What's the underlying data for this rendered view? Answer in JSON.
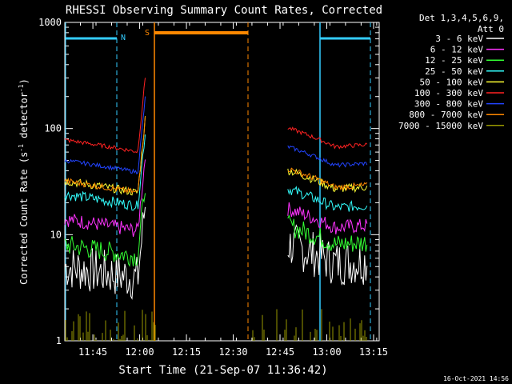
{
  "chart_data": {
    "type": "line",
    "title": "RHESSI Observing Summary Count Rates, Corrected",
    "xlabel": "Start Time (21-Sep-07 11:36:42)",
    "ylabel_main": "Corrected Count Rate (s",
    "ylabel_sup1": "-1",
    "ylabel_mid": " detector",
    "ylabel_sup2": "-1",
    "ylabel_end": ")",
    "yscale": "log",
    "ylim": [
      1,
      1000
    ],
    "xlim_minutes": [
      11.6,
      13.28
    ],
    "x_ticks": [
      "11:45",
      "12:00",
      "12:15",
      "12:30",
      "12:45",
      "13:00",
      "13:15"
    ],
    "y_ticks": [
      "1",
      "10",
      "100",
      "1000"
    ],
    "legend_header": [
      "Det 1,3,4,5,6,9,",
      "Att 0"
    ],
    "series": [
      {
        "name": "3 - 6 keV",
        "color": "#ffffff",
        "pre": 5,
        "post": 6,
        "noise": 0.22
      },
      {
        "name": "6 - 12 keV",
        "color": "#ff33ff",
        "pre": 14,
        "post": 13,
        "noise": 0.07
      },
      {
        "name": "12 - 25 keV",
        "color": "#33ff33",
        "pre": 8,
        "post": 9,
        "noise": 0.1
      },
      {
        "name": "25 - 50 keV",
        "color": "#33ffff",
        "pre": 24,
        "post": 20,
        "noise": 0.05
      },
      {
        "name": "50 - 100 keV",
        "color": "#ffff33",
        "pre": 32,
        "post": 30,
        "noise": 0.04
      },
      {
        "name": "100 - 300 keV",
        "color": "#ff2222",
        "pre": 78,
        "post": 75,
        "noise": 0.02
      },
      {
        "name": "300 - 800 keV",
        "color": "#2244ff",
        "pre": 50,
        "post": 50,
        "noise": 0.02
      },
      {
        "name": "800 - 7000 keV",
        "color": "#ff8800",
        "pre": 32,
        "post": 31,
        "noise": 0.03
      },
      {
        "name": "7000 - 15000 keV",
        "color": "#999900",
        "pre": 1,
        "post": 1,
        "noise": 0.0
      }
    ],
    "annotations": {
      "night_label": "N",
      "saa_label": "S",
      "night_color": "#33ccff",
      "saa_color": "#ff8800"
    },
    "timestamp": "16-Oct-2021 14:56"
  }
}
